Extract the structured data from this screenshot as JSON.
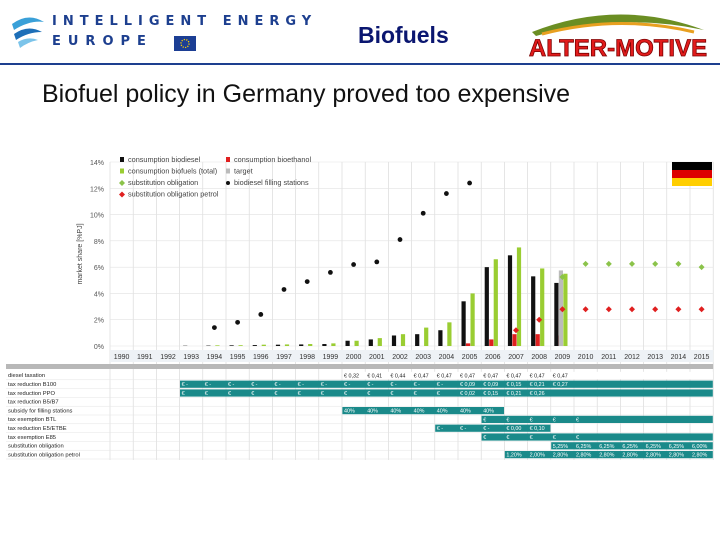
{
  "header": {
    "program_line1": "INTELLIGENT ENERGY",
    "program_line2": "EUROPE",
    "title": "Biofuels",
    "partner_logo": "ALTER-MOTIVE"
  },
  "slide_title": "Biofuel policy in Germany proved too expensive",
  "flag": {
    "colors": [
      "#000000",
      "#dd0000",
      "#ffce00"
    ]
  },
  "chart_data": {
    "type": "bar",
    "ylabel": "market share [%PJ]",
    "ylim": [
      0,
      14
    ],
    "yticks": [
      "0%",
      "2%",
      "4%",
      "6%",
      "8%",
      "10%",
      "12%",
      "14%"
    ],
    "categories": [
      "1990",
      "1991",
      "1992",
      "1993",
      "1994",
      "1995",
      "1996",
      "1997",
      "1998",
      "1999",
      "2000",
      "2001",
      "2002",
      "2003",
      "2004",
      "2005",
      "2006",
      "2007",
      "2008",
      "2009",
      "2010",
      "2011",
      "2012",
      "2013",
      "2014",
      "2015"
    ],
    "legend": [
      {
        "label": "consumption biodiesel",
        "color": "#111111",
        "marker": "square"
      },
      {
        "label": "consumption bioethanol",
        "color": "#e02020",
        "marker": "square"
      },
      {
        "label": "consumption biofuels (total)",
        "color": "#9acd32",
        "marker": "square"
      },
      {
        "label": "target",
        "color": "#bbbbbb",
        "marker": "square"
      },
      {
        "label": "substitution obligation",
        "color": "#8bc34a",
        "marker": "diamond"
      },
      {
        "label": "biodiesel filling stations",
        "color": "#111111",
        "marker": "circle"
      },
      {
        "label": "substitution obligation petrol",
        "color": "#e02020",
        "marker": "diamond"
      }
    ],
    "series": [
      {
        "name": "consumption biodiesel",
        "type": "bar",
        "color": "#111111",
        "values": [
          null,
          null,
          null,
          0.02,
          0.03,
          0.05,
          0.07,
          0.1,
          0.12,
          0.15,
          0.4,
          0.5,
          0.8,
          0.9,
          1.2,
          3.4,
          6.0,
          6.9,
          5.3,
          4.8,
          null,
          null,
          null,
          null,
          null,
          null
        ]
      },
      {
        "name": "consumption bioethanol",
        "type": "bar",
        "color": "#e02020",
        "values": [
          null,
          null,
          null,
          null,
          null,
          null,
          null,
          null,
          null,
          null,
          null,
          null,
          null,
          null,
          null,
          0.2,
          0.5,
          0.9,
          0.9,
          0.8,
          null,
          null,
          null,
          null,
          null,
          null
        ]
      },
      {
        "name": "consumption biofuels (total)",
        "type": "bar",
        "color": "#9acd32",
        "values": [
          null,
          null,
          null,
          null,
          0.05,
          0.06,
          0.1,
          0.12,
          0.15,
          0.2,
          0.4,
          0.6,
          0.9,
          1.4,
          1.8,
          4.0,
          6.6,
          7.5,
          5.9,
          5.5,
          null,
          null,
          null,
          null,
          null,
          null
        ]
      },
      {
        "name": "target",
        "type": "bar",
        "color": "#bbbbbb",
        "values": [
          null,
          null,
          null,
          null,
          null,
          null,
          null,
          null,
          null,
          null,
          null,
          null,
          null,
          null,
          null,
          null,
          null,
          null,
          null,
          5.75,
          null,
          null,
          null,
          null,
          null,
          null
        ]
      },
      {
        "name": "biodiesel filling stations",
        "type": "point",
        "color": "#111111",
        "marker": "circle",
        "values": [
          null,
          null,
          null,
          null,
          1.4,
          1.8,
          2.4,
          4.3,
          4.9,
          5.6,
          6.2,
          6.4,
          8.1,
          10.1,
          11.6,
          12.4,
          null,
          null,
          null,
          null,
          null,
          null,
          null,
          null,
          null,
          null
        ]
      },
      {
        "name": "substitution obligation",
        "type": "point",
        "color": "#8bc34a",
        "marker": "diamond",
        "values": [
          null,
          null,
          null,
          null,
          null,
          null,
          null,
          null,
          null,
          null,
          null,
          null,
          null,
          null,
          null,
          null,
          null,
          null,
          null,
          5.25,
          6.25,
          6.25,
          6.25,
          6.25,
          6.25,
          6.0
        ]
      },
      {
        "name": "substitution obligation petrol",
        "type": "point",
        "color": "#e02020",
        "marker": "diamond",
        "values": [
          null,
          null,
          null,
          null,
          null,
          null,
          null,
          null,
          null,
          null,
          null,
          null,
          null,
          null,
          null,
          null,
          null,
          1.2,
          2.0,
          2.8,
          2.8,
          2.8,
          2.8,
          2.8,
          2.8,
          2.8
        ]
      }
    ],
    "policy_table": {
      "rows": [
        {
          "label": "diesel taxation",
          "cells": [
            {
              "from": 2000,
              "to": 2015,
              "color": "#ffffff",
              "text_color": "#222222",
              "values": [
                "€ 0,32",
                "€ 0,41",
                "€ 0,44",
                "€ 0,47",
                "€ 0,47",
                "€ 0,47",
                "€ 0,47",
                "€ 0,47",
                "€ 0,47",
                "€ 0,47"
              ]
            }
          ]
        },
        {
          "label": "tax reduction B100",
          "cells": [
            {
              "from": 1993,
              "to": 2015,
              "color": "#1a8a8a",
              "text_color": "#ffffff",
              "values": [
                "€ -",
                "€ -",
                "€ -",
                "€ -",
                "€ -",
                "€ -",
                "€ -",
                "€ -",
                "€ -",
                "€ -",
                "€ -",
                "€ -",
                "€ 0,09",
                "€ 0,09",
                "€ 0,15",
                "€ 0,21",
                "€ 0,27"
              ]
            }
          ]
        },
        {
          "label": "tax reduction PPO",
          "cells": [
            {
              "from": 1993,
              "to": 2015,
              "color": "#1a8a8a",
              "text_color": "#ffffff",
              "values": [
                "€",
                "€",
                "€",
                "€",
                "€",
                "€",
                "€",
                "€",
                "€",
                "€",
                "€",
                "€",
                "€ 0,02",
                "€ 0,15",
                "€ 0,21",
                "€ 0,26"
              ]
            }
          ]
        },
        {
          "label": "tax reduction B5/B7",
          "cells": []
        },
        {
          "label": "subsidy for filling stations",
          "cells": [
            {
              "from": 2000,
              "to": 2006,
              "color": "#1a8a8a",
              "text_color": "#ffffff",
              "values": [
                "40%",
                "40%",
                "40%",
                "40%",
                "40%",
                "40%",
                "40%"
              ]
            }
          ]
        },
        {
          "label": "tax exemption BTL",
          "cells": [
            {
              "from": 2006,
              "to": 2015,
              "color": "#1a8a8a",
              "text_color": "#ffffff",
              "values": [
                "€",
                "€",
                "€",
                "€",
                "€"
              ]
            }
          ]
        },
        {
          "label": "tax reduction E5/ETBE",
          "cells": [
            {
              "from": 2004,
              "to": 2008,
              "color": "#1a8a8a",
              "text_color": "#ffffff",
              "values": [
                "€ -",
                "€ -",
                "€ -",
                "€ 0,00",
                "€ 0,10"
              ]
            }
          ]
        },
        {
          "label": "tax exemption E85",
          "cells": [
            {
              "from": 2006,
              "to": 2015,
              "color": "#1a8a8a",
              "text_color": "#ffffff",
              "values": [
                "€",
                "€",
                "€",
                "€",
                "€"
              ]
            }
          ]
        },
        {
          "label": "substitution obligation",
          "cells": [
            {
              "from": 2009,
              "to": 2015,
              "color": "#1a8a8a",
              "text_color": "#ffffff",
              "values": [
                "5,25%",
                "6,25%",
                "6,25%",
                "6,25%",
                "6,25%",
                "6,25%",
                "6,00%"
              ]
            }
          ]
        },
        {
          "label": "substitution obligation petrol",
          "cells": [
            {
              "from": 2007,
              "to": 2015,
              "color": "#1a8a8a",
              "text_color": "#ffffff",
              "values": [
                "1,20%",
                "2,00%",
                "2,80%",
                "2,80%",
                "2,80%",
                "2,80%",
                "2,80%",
                "2,80%",
                "2,80%"
              ]
            }
          ]
        }
      ]
    }
  }
}
